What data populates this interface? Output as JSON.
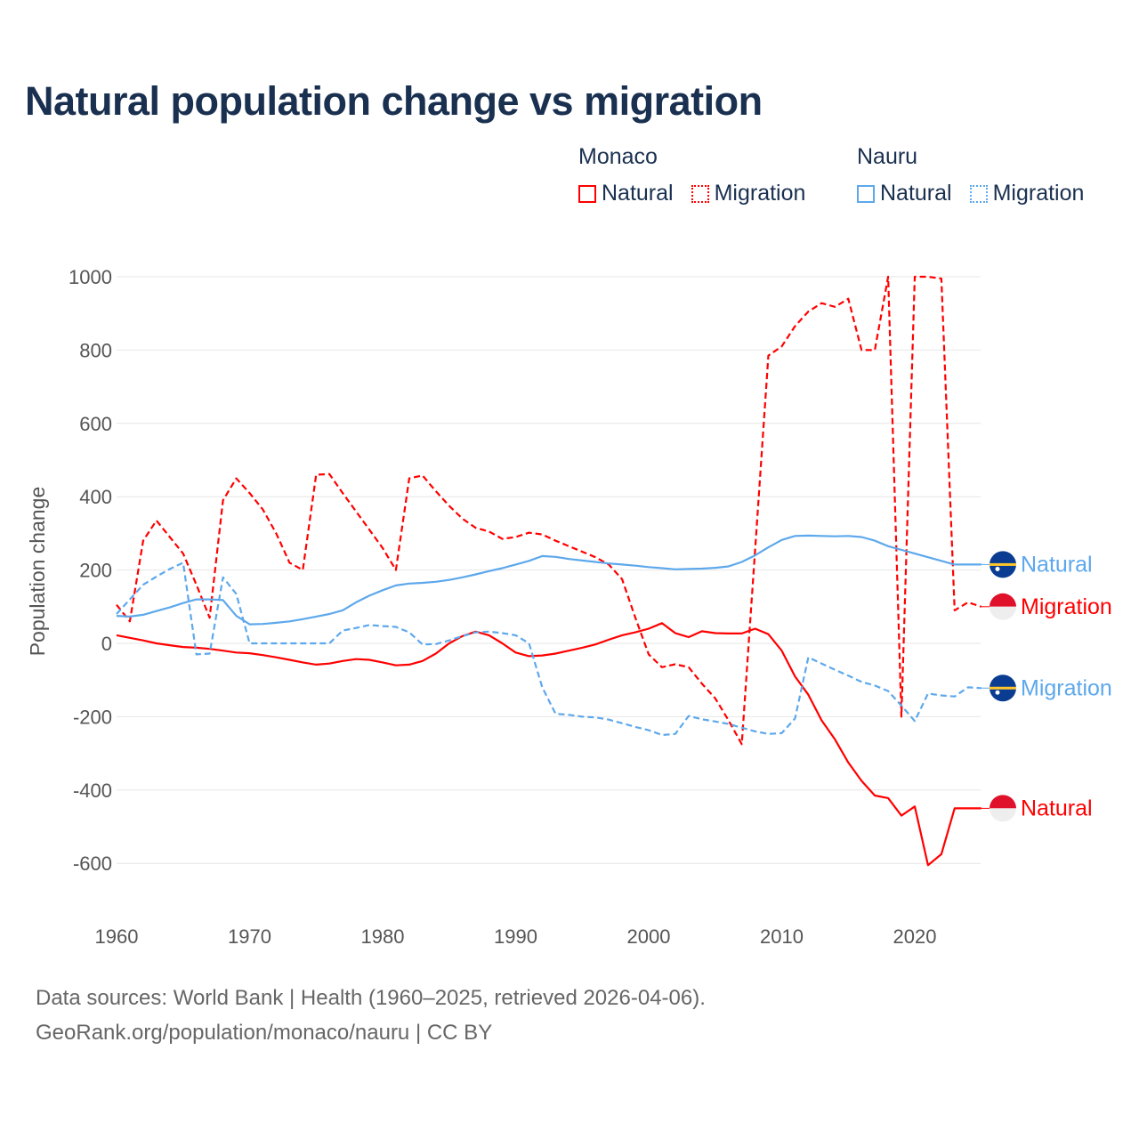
{
  "chart_data": {
    "type": "line",
    "title": "Natural population change vs migration",
    "xlabel": "",
    "ylabel": "Population change",
    "xlim": [
      1960,
      2025
    ],
    "ylim": [
      -700,
      1000
    ],
    "xticks": [
      1960,
      1970,
      1980,
      1990,
      2000,
      2010,
      2020
    ],
    "yticks": [
      -600,
      -400,
      -200,
      0,
      200,
      400,
      600,
      800,
      1000
    ],
    "grid": true,
    "legend_placement": "top-right",
    "legend_groups": [
      {
        "name": "Monaco",
        "items": [
          "Natural",
          "Migration"
        ]
      },
      {
        "name": "Nauru",
        "items": [
          "Natural",
          "Migration"
        ]
      }
    ],
    "series": [
      {
        "country": "Monaco",
        "name": "Natural",
        "color": "#ff0000",
        "dash": false,
        "end_label": "Natural",
        "flag": "monaco-flag",
        "start_year": 1960,
        "values": [
          22,
          15,
          8,
          0,
          -5,
          -10,
          -12,
          -15,
          -20,
          -25,
          -27,
          -32,
          -38,
          -45,
          -52,
          -58,
          -55,
          -48,
          -43,
          -45,
          -52,
          -60,
          -58,
          -48,
          -28,
          0,
          20,
          32,
          22,
          0,
          -25,
          -35,
          -33,
          -28,
          -20,
          -12,
          -3,
          10,
          22,
          30,
          40,
          55,
          28,
          17,
          33,
          28,
          27,
          27,
          40,
          25,
          -20,
          -90,
          -140,
          -210,
          -262,
          -325,
          -375,
          -415,
          -422,
          -470,
          -445,
          -605,
          -575,
          -450,
          -450,
          -450
        ]
      },
      {
        "country": "Monaco",
        "name": "Migration",
        "color": "#ff0000",
        "dash": true,
        "end_label": "Migration",
        "flag": "monaco-flag",
        "start_year": 1960,
        "values": [
          105,
          60,
          280,
          335,
          290,
          245,
          160,
          70,
          390,
          450,
          410,
          365,
          300,
          220,
          200,
          460,
          462,
          410,
          360,
          310,
          260,
          200,
          450,
          458,
          415,
          375,
          340,
          315,
          305,
          285,
          290,
          302,
          297,
          280,
          265,
          250,
          235,
          215,
          175,
          70,
          -30,
          -65,
          -57,
          -65,
          -110,
          -150,
          -210,
          -275,
          255,
          785,
          810,
          865,
          905,
          928,
          918,
          940,
          800,
          800,
          1000,
          -200,
          1000,
          1000,
          995,
          90,
          112,
          100
        ]
      },
      {
        "country": "Nauru",
        "name": "Natural",
        "color": "#5da8ec",
        "dash": false,
        "end_label": "Natural",
        "flag": "nauru-flag",
        "start_year": 1960,
        "values": [
          75,
          73,
          78,
          88,
          98,
          110,
          120,
          120,
          118,
          75,
          52,
          53,
          56,
          60,
          66,
          73,
          80,
          90,
          112,
          130,
          145,
          158,
          163,
          165,
          168,
          173,
          180,
          188,
          197,
          205,
          215,
          225,
          238,
          236,
          230,
          226,
          222,
          218,
          215,
          212,
          208,
          205,
          202,
          203,
          204,
          206,
          210,
          222,
          240,
          262,
          282,
          293,
          294,
          293,
          292,
          293,
          290,
          280,
          265,
          255,
          245,
          235,
          225,
          215,
          215,
          215
        ]
      },
      {
        "country": "Nauru",
        "name": "Migration",
        "color": "#5da8ec",
        "dash": true,
        "end_label": "Migration",
        "flag": "nauru-flag",
        "start_year": 1960,
        "values": [
          80,
          120,
          160,
          182,
          203,
          220,
          -30,
          -28,
          180,
          135,
          0,
          0,
          0,
          0,
          0,
          0,
          0,
          35,
          42,
          50,
          47,
          45,
          30,
          -3,
          -2,
          8,
          20,
          30,
          32,
          28,
          22,
          0,
          -120,
          -192,
          -195,
          -200,
          -202,
          -208,
          -218,
          -228,
          -237,
          -250,
          -247,
          -198,
          -207,
          -213,
          -220,
          -230,
          -240,
          -247,
          -245,
          -205,
          -38,
          -55,
          -72,
          -88,
          -105,
          -115,
          -130,
          -170,
          -212,
          -137,
          -142,
          -145,
          -120,
          -122
        ]
      }
    ]
  },
  "legend": {
    "groups": [
      {
        "name": "Monaco",
        "natural": "Natural",
        "migration": "Migration"
      },
      {
        "name": "Nauru",
        "natural": "Natural",
        "migration": "Migration"
      }
    ]
  },
  "footer": {
    "line1": "Data sources: World Bank | Health (1960–2025, retrieved 2026-04-06).",
    "line2": "GeoRank.org/population/monaco/nauru | CC BY"
  }
}
